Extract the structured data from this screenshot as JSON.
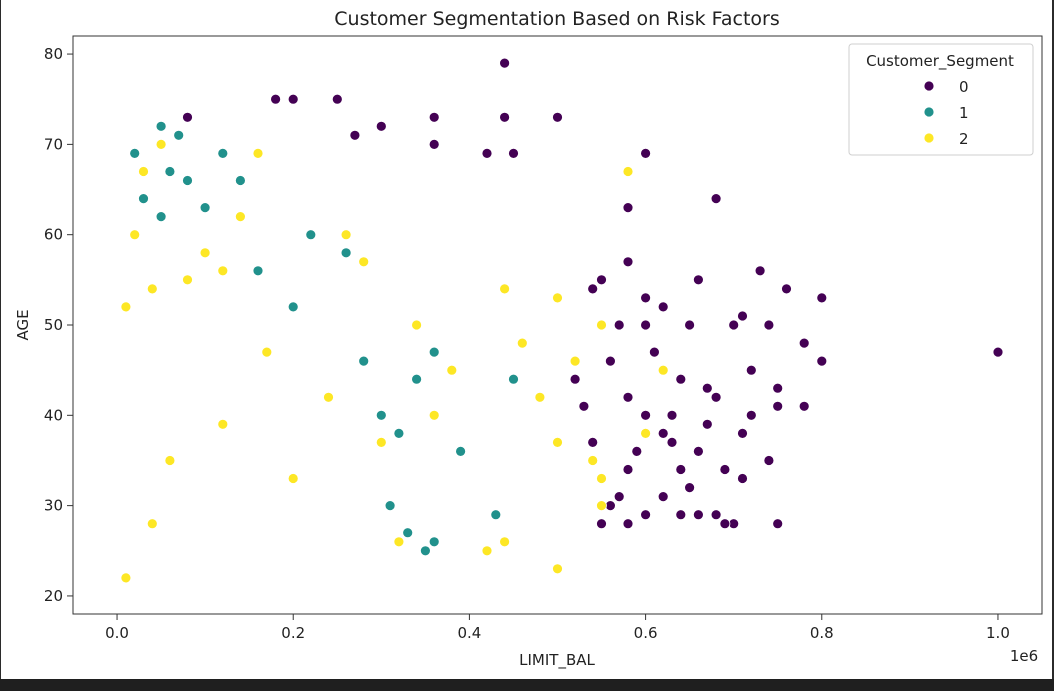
{
  "chart_data": {
    "type": "scatter",
    "title": "Customer Segmentation Based on Risk Factors",
    "xlabel": "LIMIT_BAL",
    "ylabel": "AGE",
    "x_offset_label": "1e6",
    "xlim": [
      -0.05,
      1.05
    ],
    "ylim": [
      18,
      82
    ],
    "x_ticks": [
      {
        "value": 0.0,
        "label": "0.0"
      },
      {
        "value": 0.2,
        "label": "0.2"
      },
      {
        "value": 0.4,
        "label": "0.4"
      },
      {
        "value": 0.6,
        "label": "0.6"
      },
      {
        "value": 0.8,
        "label": "0.8"
      },
      {
        "value": 1.0,
        "label": "1.0"
      }
    ],
    "y_ticks": [
      {
        "value": 20,
        "label": "20"
      },
      {
        "value": 30,
        "label": "30"
      },
      {
        "value": 40,
        "label": "40"
      },
      {
        "value": 50,
        "label": "50"
      },
      {
        "value": 60,
        "label": "60"
      },
      {
        "value": 70,
        "label": "70"
      },
      {
        "value": 80,
        "label": "80"
      }
    ],
    "grid": false,
    "legend": {
      "title": "Customer_Segment",
      "placement": "upper-right",
      "entries": [
        {
          "label": "0",
          "color": "#440154"
        },
        {
          "label": "1",
          "color": "#21918c"
        },
        {
          "label": "2",
          "color": "#fde725"
        }
      ]
    },
    "series": [
      {
        "name": "0",
        "color": "#440154",
        "points": [
          [
            0.44,
            79
          ],
          [
            1.0,
            47
          ],
          [
            0.18,
            75
          ],
          [
            0.2,
            75
          ],
          [
            0.25,
            75
          ],
          [
            0.08,
            73
          ],
          [
            0.36,
            73
          ],
          [
            0.44,
            73
          ],
          [
            0.5,
            73
          ],
          [
            0.27,
            71
          ],
          [
            0.3,
            72
          ],
          [
            0.36,
            70
          ],
          [
            0.42,
            69
          ],
          [
            0.45,
            69
          ],
          [
            0.58,
            63
          ],
          [
            0.6,
            69
          ],
          [
            0.68,
            64
          ],
          [
            0.58,
            57
          ],
          [
            0.66,
            55
          ],
          [
            0.73,
            56
          ],
          [
            0.76,
            54
          ],
          [
            0.8,
            53
          ],
          [
            0.78,
            48
          ],
          [
            0.8,
            46
          ],
          [
            0.7,
            50
          ],
          [
            0.71,
            51
          ],
          [
            0.72,
            45
          ],
          [
            0.74,
            50
          ],
          [
            0.75,
            43
          ],
          [
            0.75,
            41
          ],
          [
            0.78,
            41
          ],
          [
            0.75,
            28
          ],
          [
            0.7,
            28
          ],
          [
            0.74,
            35
          ],
          [
            0.69,
            34
          ],
          [
            0.71,
            33
          ],
          [
            0.71,
            38
          ],
          [
            0.72,
            40
          ],
          [
            0.67,
            43
          ],
          [
            0.68,
            42
          ],
          [
            0.64,
            44
          ],
          [
            0.63,
            40
          ],
          [
            0.62,
            38
          ],
          [
            0.61,
            47
          ],
          [
            0.6,
            50
          ],
          [
            0.6,
            53
          ],
          [
            0.62,
            52
          ],
          [
            0.65,
            50
          ],
          [
            0.55,
            28
          ],
          [
            0.56,
            30
          ],
          [
            0.58,
            28
          ],
          [
            0.6,
            29
          ],
          [
            0.62,
            31
          ],
          [
            0.64,
            29
          ],
          [
            0.66,
            29
          ],
          [
            0.65,
            32
          ],
          [
            0.68,
            29
          ],
          [
            0.69,
            28
          ],
          [
            0.57,
            31
          ],
          [
            0.58,
            34
          ],
          [
            0.54,
            37
          ],
          [
            0.52,
            44
          ],
          [
            0.53,
            41
          ],
          [
            0.54,
            54
          ],
          [
            0.55,
            55
          ],
          [
            0.57,
            50
          ],
          [
            0.56,
            46
          ],
          [
            0.58,
            42
          ],
          [
            0.59,
            36
          ],
          [
            0.6,
            40
          ],
          [
            0.63,
            37
          ],
          [
            0.64,
            34
          ],
          [
            0.66,
            36
          ],
          [
            0.67,
            39
          ]
        ]
      },
      {
        "name": "1",
        "color": "#21918c",
        "points": [
          [
            0.05,
            72
          ],
          [
            0.07,
            71
          ],
          [
            0.02,
            69
          ],
          [
            0.12,
            69
          ],
          [
            0.06,
            67
          ],
          [
            0.08,
            66
          ],
          [
            0.14,
            66
          ],
          [
            0.03,
            64
          ],
          [
            0.1,
            63
          ],
          [
            0.05,
            62
          ],
          [
            0.3,
            40
          ],
          [
            0.32,
            38
          ],
          [
            0.34,
            44
          ],
          [
            0.22,
            60
          ],
          [
            0.26,
            58
          ],
          [
            0.16,
            56
          ],
          [
            0.2,
            52
          ],
          [
            0.28,
            46
          ],
          [
            0.31,
            30
          ],
          [
            0.33,
            27
          ],
          [
            0.35,
            25
          ],
          [
            0.36,
            47
          ],
          [
            0.39,
            36
          ],
          [
            0.43,
            29
          ],
          [
            0.45,
            44
          ],
          [
            0.36,
            26
          ]
        ]
      },
      {
        "name": "2",
        "color": "#fde725",
        "points": [
          [
            0.05,
            70
          ],
          [
            0.16,
            69
          ],
          [
            0.58,
            67
          ],
          [
            0.03,
            67
          ],
          [
            0.14,
            62
          ],
          [
            0.02,
            60
          ],
          [
            0.1,
            58
          ],
          [
            0.12,
            56
          ],
          [
            0.08,
            55
          ],
          [
            0.04,
            54
          ],
          [
            0.01,
            52
          ],
          [
            0.44,
            54
          ],
          [
            0.5,
            53
          ],
          [
            0.55,
            50
          ],
          [
            0.54,
            35
          ],
          [
            0.55,
            33
          ],
          [
            0.55,
            30
          ],
          [
            0.5,
            23
          ],
          [
            0.42,
            25
          ],
          [
            0.44,
            26
          ],
          [
            0.62,
            45
          ],
          [
            0.6,
            38
          ],
          [
            0.46,
            48
          ],
          [
            0.48,
            42
          ],
          [
            0.5,
            37
          ],
          [
            0.52,
            46
          ],
          [
            0.36,
            40
          ],
          [
            0.34,
            50
          ],
          [
            0.26,
            60
          ],
          [
            0.28,
            57
          ],
          [
            0.3,
            37
          ],
          [
            0.32,
            26
          ],
          [
            0.38,
            45
          ],
          [
            0.24,
            42
          ],
          [
            0.2,
            33
          ],
          [
            0.17,
            47
          ],
          [
            0.12,
            39
          ],
          [
            0.06,
            35
          ],
          [
            0.04,
            28
          ],
          [
            0.01,
            22
          ]
        ]
      }
    ]
  }
}
